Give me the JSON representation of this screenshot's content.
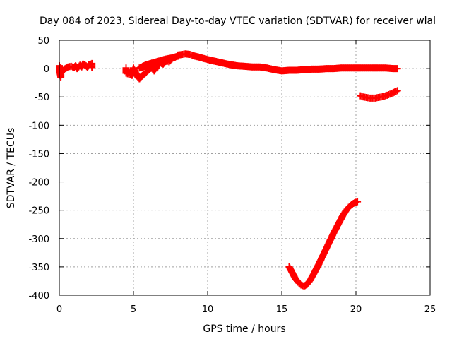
{
  "chart_data": {
    "type": "scatter",
    "title": "Day 084 of 2023, Sidereal Day-to-day VTEC variation (SDTVAR) for receiver wlal",
    "xlabel": "GPS time / hours",
    "ylabel": "SDTVAR / TECUs",
    "xlim": [
      0,
      25
    ],
    "ylim": [
      -400,
      50
    ],
    "xticks": [
      0,
      5,
      10,
      15,
      20,
      25
    ],
    "yticks": [
      50,
      0,
      -50,
      -100,
      -150,
      -200,
      -250,
      -300,
      -350,
      -400
    ],
    "grid": true,
    "marker": "plus",
    "color": "#ff0000",
    "series": [
      {
        "points": [
          [
            0.0,
            5
          ],
          [
            0.0,
            -2
          ],
          [
            0.05,
            -8
          ],
          [
            0.1,
            -15
          ],
          [
            0.1,
            2
          ],
          [
            0.2,
            -5
          ],
          [
            0.4,
            0
          ],
          [
            0.6,
            3
          ],
          [
            0.8,
            4
          ],
          [
            1.0,
            2
          ],
          [
            1.1,
            5
          ],
          [
            1.2,
            0
          ],
          [
            1.4,
            6
          ],
          [
            1.5,
            3
          ],
          [
            1.6,
            8
          ],
          [
            1.8,
            5
          ],
          [
            1.9,
            2
          ],
          [
            2.0,
            7
          ],
          [
            2.2,
            9
          ],
          [
            2.2,
            2
          ]
        ]
      },
      {
        "points": [
          [
            4.5,
            1
          ],
          [
            4.5,
            -8
          ],
          [
            4.7,
            -10
          ],
          [
            4.9,
            -12
          ],
          [
            5.0,
            1
          ],
          [
            5.1,
            -5
          ],
          [
            5.3,
            -15
          ],
          [
            5.4,
            -18
          ],
          [
            5.6,
            -12
          ],
          [
            5.8,
            -8
          ],
          [
            6.0,
            -3
          ],
          [
            6.2,
            2
          ],
          [
            6.4,
            -4
          ],
          [
            6.6,
            5
          ],
          [
            6.8,
            10
          ],
          [
            7.0,
            8
          ],
          [
            7.2,
            14
          ],
          [
            7.4,
            12
          ],
          [
            7.6,
            18
          ],
          [
            7.8,
            20
          ],
          [
            5.4,
            1
          ],
          [
            5.7,
            5
          ],
          [
            6.0,
            8
          ],
          [
            6.4,
            11
          ],
          [
            6.8,
            14
          ],
          [
            7.2,
            17
          ],
          [
            7.6,
            19
          ],
          [
            8.0,
            22
          ]
        ]
      },
      {
        "points": [
          [
            8.0,
            24
          ],
          [
            8.3,
            25
          ],
          [
            8.5,
            26
          ],
          [
            8.8,
            25
          ],
          [
            9.0,
            23
          ],
          [
            9.3,
            21
          ],
          [
            9.6,
            19
          ],
          [
            10.0,
            16
          ],
          [
            10.5,
            13
          ],
          [
            11.0,
            10
          ],
          [
            11.5,
            7
          ],
          [
            12.0,
            5
          ],
          [
            12.5,
            4
          ],
          [
            13.0,
            3
          ],
          [
            13.5,
            3
          ],
          [
            14.0,
            1
          ],
          [
            14.5,
            -2
          ],
          [
            15.0,
            -4
          ],
          [
            15.5,
            -3
          ],
          [
            16.0,
            -3
          ],
          [
            16.5,
            -2
          ],
          [
            17.0,
            -1
          ],
          [
            17.5,
            -1
          ],
          [
            18.0,
            0
          ],
          [
            18.5,
            0
          ],
          [
            19.0,
            1
          ],
          [
            19.5,
            1
          ],
          [
            20.0,
            1
          ],
          [
            20.5,
            1
          ],
          [
            21.0,
            1
          ],
          [
            21.5,
            1
          ],
          [
            22.0,
            1
          ],
          [
            22.5,
            0
          ],
          [
            22.8,
            0
          ]
        ]
      },
      {
        "points": [
          [
            15.5,
            -350
          ],
          [
            15.7,
            -360
          ],
          [
            15.9,
            -370
          ],
          [
            16.1,
            -377
          ],
          [
            16.3,
            -382
          ],
          [
            16.5,
            -384
          ],
          [
            16.7,
            -381
          ],
          [
            16.9,
            -374
          ],
          [
            17.1,
            -365
          ],
          [
            17.3,
            -355
          ],
          [
            17.5,
            -345
          ],
          [
            17.7,
            -334
          ],
          [
            17.9,
            -323
          ],
          [
            18.1,
            -312
          ],
          [
            18.3,
            -301
          ],
          [
            18.5,
            -290
          ],
          [
            18.7,
            -280
          ],
          [
            18.9,
            -270
          ],
          [
            19.1,
            -260
          ],
          [
            19.3,
            -252
          ],
          [
            19.5,
            -245
          ],
          [
            19.7,
            -240
          ],
          [
            19.9,
            -237
          ],
          [
            20.1,
            -235
          ]
        ]
      },
      {
        "points": [
          [
            20.3,
            -48
          ],
          [
            20.5,
            -50
          ],
          [
            20.7,
            -51
          ],
          [
            20.9,
            -52
          ],
          [
            21.1,
            -52
          ],
          [
            21.3,
            -52
          ],
          [
            21.5,
            -51
          ],
          [
            21.7,
            -50
          ],
          [
            21.9,
            -49
          ],
          [
            22.1,
            -47
          ],
          [
            22.3,
            -45
          ],
          [
            22.5,
            -43
          ],
          [
            22.7,
            -40
          ],
          [
            22.8,
            -39
          ]
        ]
      }
    ]
  }
}
